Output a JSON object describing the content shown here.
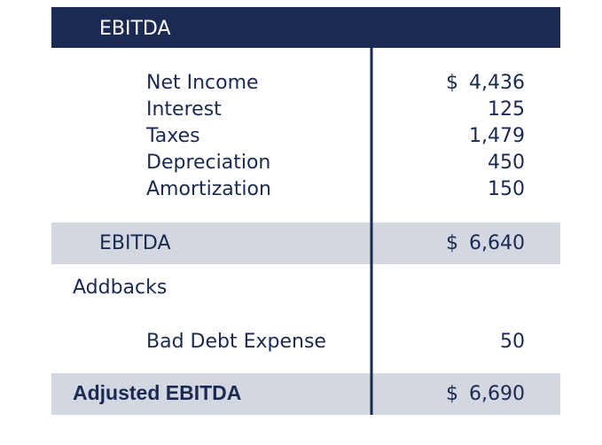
{
  "header": {
    "title": "EBITDA"
  },
  "items": [
    {
      "label": "Net Income",
      "currency": "$",
      "value": "4,436"
    },
    {
      "label": "Interest",
      "value": "125"
    },
    {
      "label": "Taxes",
      "value": "1,479"
    },
    {
      "label": "Depreciation",
      "value": "450"
    },
    {
      "label": "Amortization",
      "value": "150"
    }
  ],
  "subtotal": {
    "label": "EBITDA",
    "currency": "$",
    "value": "6,640"
  },
  "addbacks": {
    "title": "Addbacks",
    "items": [
      {
        "label": "Bad Debt Expense",
        "value": "50"
      }
    ]
  },
  "total": {
    "label": "Adjusted EBITDA",
    "currency": "$",
    "value": "6,690"
  }
}
